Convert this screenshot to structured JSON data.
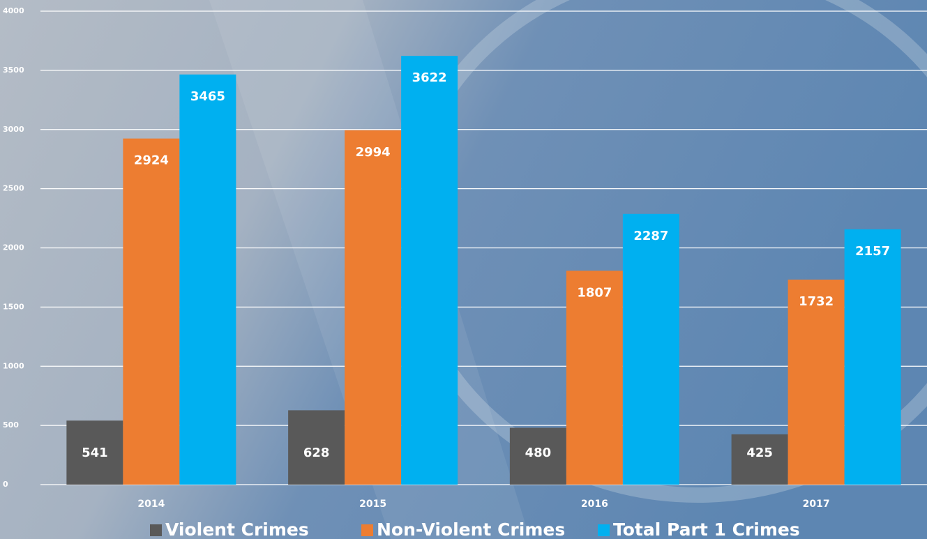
{
  "chart_data": {
    "type": "bar",
    "categories": [
      "2014",
      "2015",
      "2016",
      "2017"
    ],
    "series": [
      {
        "name": "Violent Crimes",
        "color": "#595959",
        "values": [
          541,
          628,
          480,
          425
        ]
      },
      {
        "name": "Non-Violent Crimes",
        "color": "#ed7d31",
        "values": [
          2924,
          2994,
          1807,
          1732
        ]
      },
      {
        "name": "Total Part 1 Crimes",
        "color": "#00b0f0",
        "values": [
          3465,
          3622,
          2287,
          2157
        ]
      }
    ],
    "ylim": [
      0,
      4000
    ],
    "yticks": [
      0,
      500,
      1000,
      1500,
      2000,
      2500,
      3000,
      3500,
      4000
    ],
    "grid": true
  }
}
